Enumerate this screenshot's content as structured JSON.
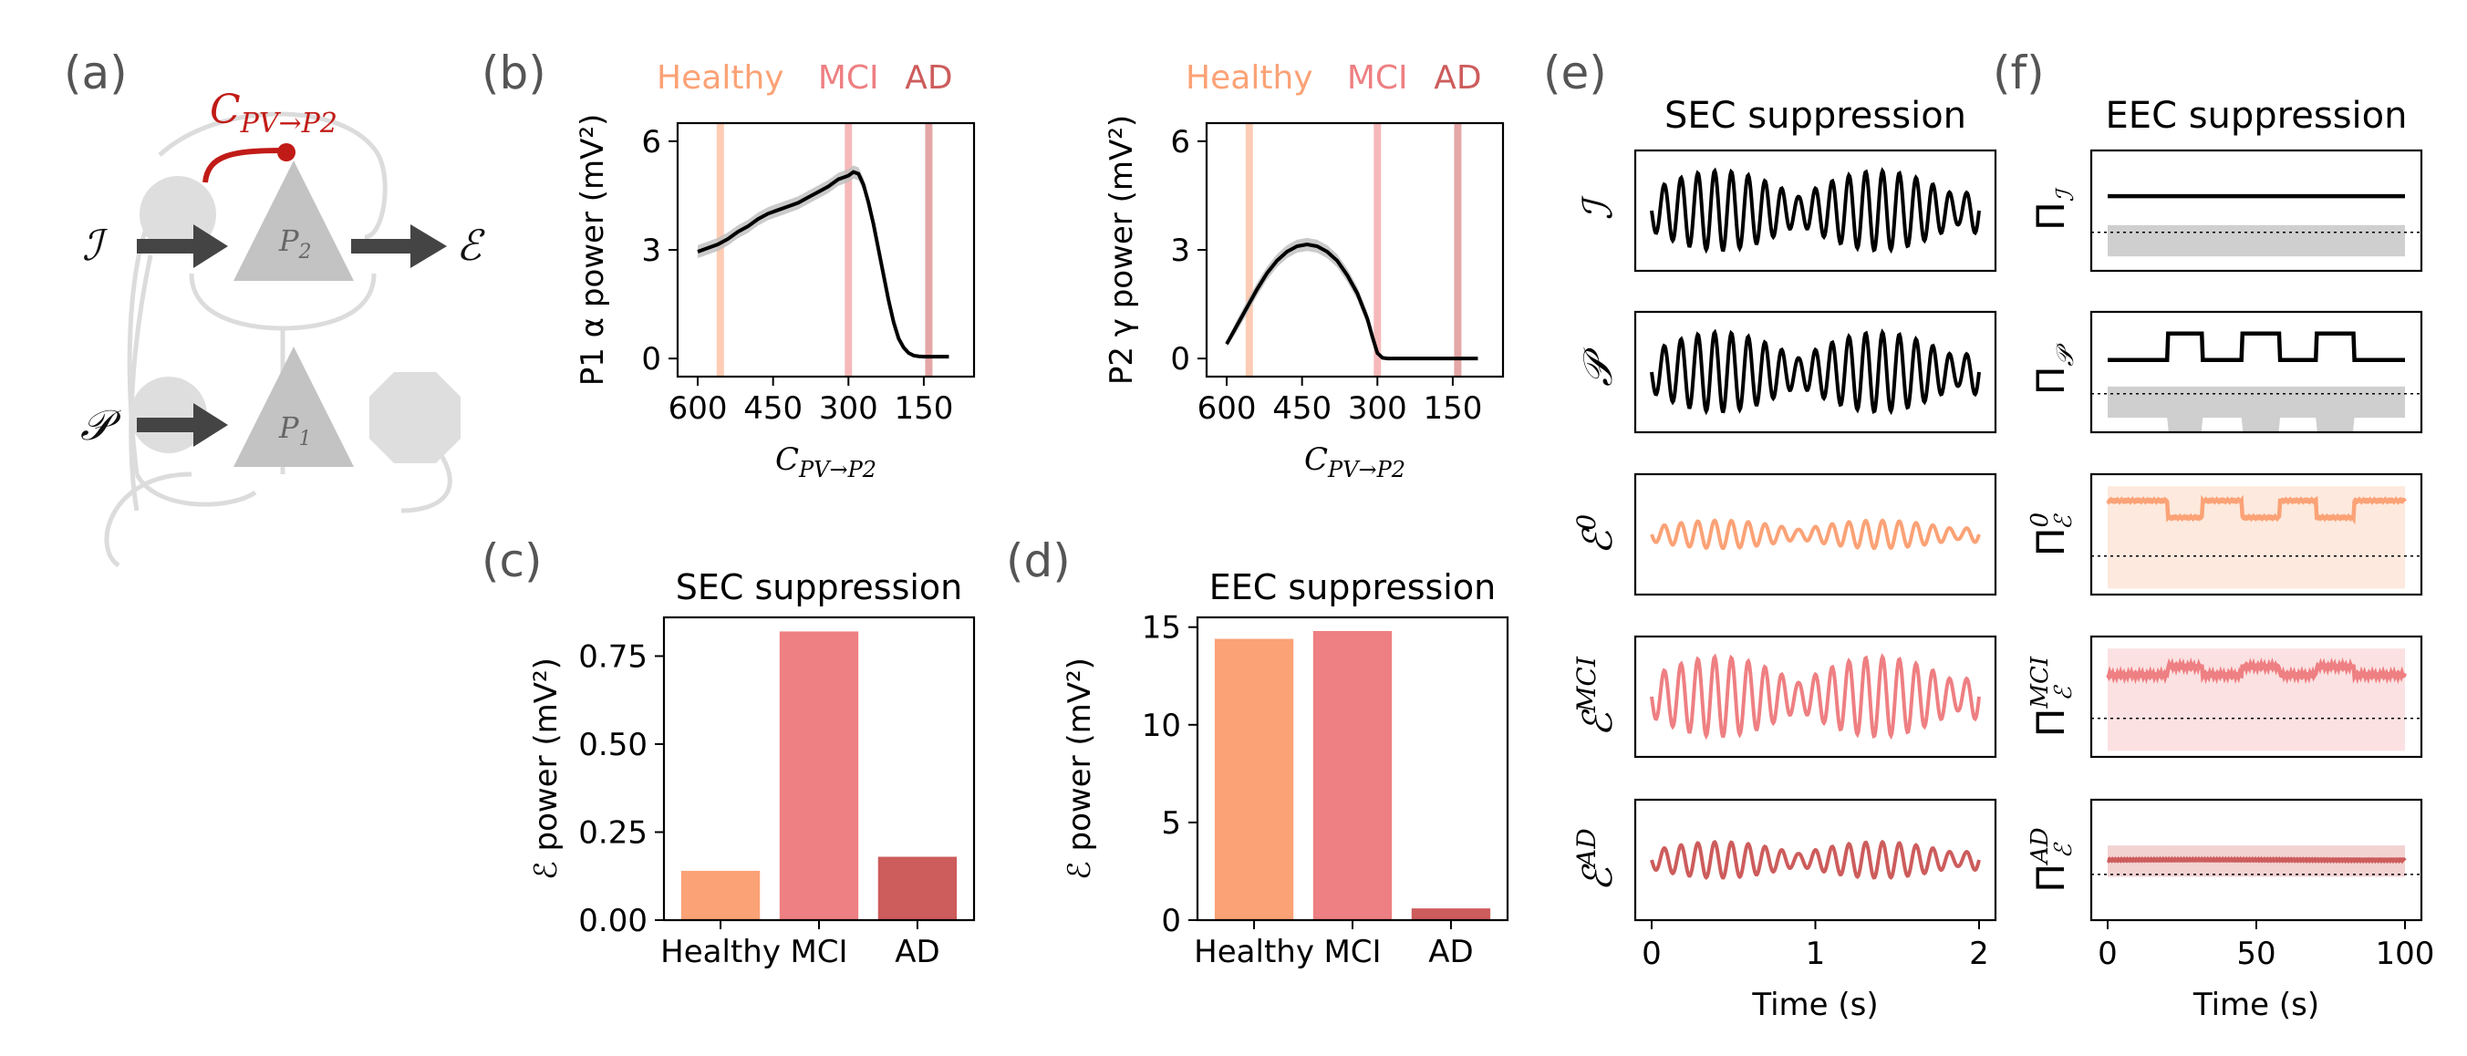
{
  "panel_labels": {
    "a": "(a)",
    "b": "(b)",
    "c": "(c)",
    "d": "(d)",
    "e": "(e)",
    "f": "(f)"
  },
  "circuit": {
    "highlight_label_main": "C",
    "highlight_label_sub": "PV→P2",
    "input_i": "ℐ",
    "input_p": "𝒫",
    "output_e": "ℰ",
    "node_p2": "P",
    "node_p2_sub": "2",
    "node_p1": "P",
    "node_p1_sub": "1"
  },
  "stage_labels": [
    "Healthy",
    "MCI",
    "AD"
  ],
  "colors": {
    "healthy": "#fba276",
    "mci": "#ee7f82",
    "ad": "#cd5c5c",
    "node": "#c3c3c3",
    "node_light": "#dedede",
    "arrow": "#444444",
    "highlight": "#c11b17"
  },
  "chart_data": [
    {
      "type": "line",
      "panel": "b-left",
      "ylabel": "P1 α power (mV²)",
      "xlabel_main": "C",
      "xlabel_sub": "PV→P2",
      "x_reversed": true,
      "xlim": [
        640,
        50
      ],
      "ylim": [
        -0.5,
        6.5
      ],
      "xticks": [
        600,
        450,
        300,
        150
      ],
      "yticks": [
        0,
        3,
        6
      ],
      "markers": {
        "healthy": 555,
        "mci": 300,
        "ad": 140
      },
      "x": [
        600,
        580,
        560,
        540,
        520,
        500,
        480,
        460,
        440,
        420,
        400,
        380,
        360,
        340,
        320,
        310,
        300,
        290,
        280,
        270,
        260,
        250,
        240,
        230,
        220,
        210,
        200,
        190,
        180,
        170,
        160,
        150,
        140,
        130,
        120,
        110,
        100
      ],
      "y": [
        2.95,
        3.05,
        3.15,
        3.3,
        3.5,
        3.65,
        3.85,
        4.0,
        4.1,
        4.2,
        4.3,
        4.45,
        4.6,
        4.75,
        4.95,
        5.0,
        5.05,
        5.15,
        5.1,
        4.8,
        4.3,
        3.7,
        3.0,
        2.3,
        1.6,
        1.0,
        0.55,
        0.3,
        0.15,
        0.08,
        0.06,
        0.05,
        0.05,
        0.05,
        0.05,
        0.05,
        0.05
      ]
    },
    {
      "type": "line",
      "panel": "b-right",
      "ylabel": "P2 γ power (mV²)",
      "xlabel_main": "C",
      "xlabel_sub": "PV→P2",
      "x_reversed": true,
      "xlim": [
        640,
        50
      ],
      "ylim": [
        -0.5,
        6.5
      ],
      "xticks": [
        600,
        450,
        300,
        150
      ],
      "yticks": [
        0,
        3,
        6
      ],
      "markers": {
        "healthy": 555,
        "mci": 300,
        "ad": 140
      },
      "x": [
        600,
        580,
        560,
        540,
        520,
        500,
        480,
        460,
        440,
        420,
        400,
        380,
        360,
        340,
        320,
        310,
        300,
        290,
        280,
        260,
        240,
        220,
        200,
        180,
        160,
        140,
        120,
        100
      ],
      "y": [
        0.4,
        0.9,
        1.4,
        1.9,
        2.35,
        2.7,
        2.95,
        3.1,
        3.15,
        3.1,
        2.95,
        2.7,
        2.3,
        1.8,
        1.1,
        0.6,
        0.15,
        0.02,
        0.0,
        0.0,
        0.0,
        0.0,
        0.0,
        0.0,
        0.0,
        0.0,
        0.0,
        0.0
      ]
    },
    {
      "type": "bar",
      "panel": "c",
      "title": "SEC suppression",
      "ylabel": "ℰ power (mV²)",
      "categories": [
        "Healthy",
        "MCI",
        "AD"
      ],
      "values": [
        0.14,
        0.82,
        0.18
      ],
      "ylim": [
        0,
        0.86
      ],
      "yticks": [
        "0.00",
        "0.25",
        "0.50",
        "0.75"
      ]
    },
    {
      "type": "bar",
      "panel": "d",
      "title": "EEC suppression",
      "ylabel": "ℰ power (mV²)",
      "categories": [
        "Healthy",
        "MCI",
        "AD"
      ],
      "values": [
        14.4,
        14.8,
        0.6
      ],
      "ylim": [
        0,
        15.5
      ],
      "yticks": [
        "0",
        "5",
        "10",
        "15"
      ]
    },
    {
      "type": "line",
      "panel": "e",
      "title": "SEC suppression",
      "xlabel": "Time (s)",
      "xlim": [
        0,
        2
      ],
      "xticks": [
        "0",
        "1",
        "2"
      ],
      "series": [
        {
          "label": "ℐ",
          "sup": "",
          "color": "#000000",
          "amp": 1.0
        },
        {
          "label": "𝒫",
          "sup": "",
          "color": "#000000",
          "amp": 1.0
        },
        {
          "label": "ℰ",
          "sup": "0",
          "color": "#fba276",
          "amp": 0.35
        },
        {
          "label": "ℰ",
          "sup": "MCI",
          "color": "#ee7f82",
          "amp": 1.0
        },
        {
          "label": "ℰ",
          "sup": "AD",
          "color": "#cd5c5c",
          "amp": 0.45
        }
      ]
    },
    {
      "type": "line",
      "panel": "f",
      "title": "EEC suppression",
      "xlabel": "Time (s)",
      "xlim": [
        0,
        100
      ],
      "xticks": [
        "0",
        "50",
        "100"
      ],
      "series": [
        {
          "label": "Π",
          "sub": "ℐ",
          "sup": "",
          "color": "#000000",
          "band": "#cfcfcf"
        },
        {
          "label": "Π",
          "sub": "𝒫",
          "sup": "",
          "color": "#000000",
          "band": "#cfcfcf"
        },
        {
          "label": "Π",
          "sub": "ℰ",
          "sup": "0",
          "color": "#fba276",
          "band": "#fde3d5"
        },
        {
          "label": "Π",
          "sub": "ℰ",
          "sup": "MCI",
          "color": "#ee7f82",
          "band": "#fadada"
        },
        {
          "label": "Π",
          "sub": "ℰ",
          "sup": "AD",
          "color": "#cd5c5c",
          "band": "#f3d2d2"
        }
      ]
    }
  ]
}
